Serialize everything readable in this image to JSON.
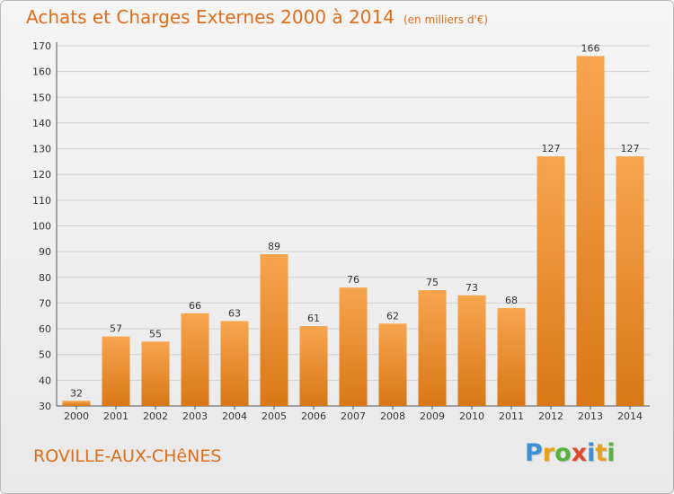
{
  "title": "Achats et Charges Externes 2000 à 2014",
  "subtitle": "(en milliers d'€)",
  "place": "ROVILLE-AUX-CHêNES",
  "brand": {
    "text": "Proxiti",
    "letters": [
      {
        "ch": "P",
        "color": "#3a8fd6"
      },
      {
        "ch": "r",
        "color": "#e8a21a"
      },
      {
        "ch": "o",
        "color": "#57b33e"
      },
      {
        "ch": "x",
        "color": "#e04a2f"
      },
      {
        "ch": "i",
        "color": "#3a8fd6"
      },
      {
        "ch": "t",
        "color": "#e8a21a"
      },
      {
        "ch": "i",
        "color": "#57b33e"
      }
    ]
  },
  "colors": {
    "bar_light": "#f7a54e",
    "bar_dark": "#d97716",
    "title": "#e06d1a",
    "grid": "#d2d2d2"
  },
  "chart_data": {
    "type": "bar",
    "title": "Achats et Charges Externes 2000 à 2014",
    "subtitle": "(en milliers d'€)",
    "categories": [
      "2000",
      "2001",
      "2002",
      "2003",
      "2004",
      "2005",
      "2006",
      "2007",
      "2008",
      "2009",
      "2010",
      "2011",
      "2012",
      "2013",
      "2014"
    ],
    "values": [
      32,
      57,
      55,
      66,
      63,
      89,
      61,
      76,
      62,
      75,
      73,
      68,
      127,
      166,
      127
    ],
    "ylim": [
      30,
      170
    ],
    "yticks": [
      30,
      40,
      50,
      60,
      70,
      80,
      90,
      100,
      110,
      120,
      130,
      140,
      150,
      160,
      170
    ],
    "grid": true,
    "xlabel": "",
    "ylabel": ""
  }
}
